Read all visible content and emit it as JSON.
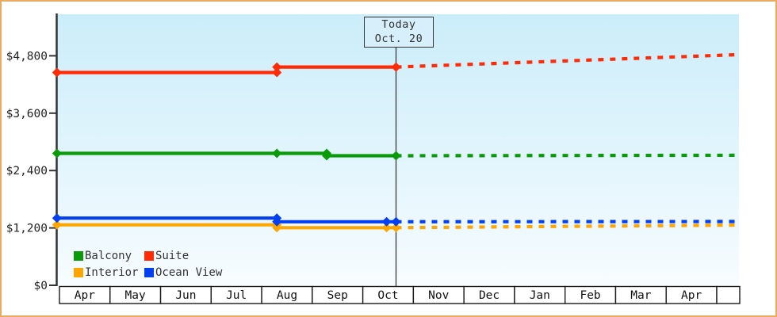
{
  "window": {
    "description": "Cruise cabin price history and forecast chart"
  },
  "colors": {
    "frame_border": "#ecaa62",
    "axis": "#333333",
    "plot_gradient_top": "#cbedfa",
    "plot_gradient_bottom": "#f7fcff",
    "today_box_bg": "#d7effb",
    "month_cell_bg": "#ffffff",
    "text": "#333333"
  },
  "chart_data": {
    "type": "line",
    "title": "",
    "today_label": {
      "line1": "Today",
      "line2": "Oct. 20"
    },
    "today_x_month": 6.657,
    "x_axis": {
      "months": [
        "Apr",
        "May",
        "Jun",
        "Jul",
        "Aug",
        "Sep",
        "Oct",
        "Nov",
        "Dec",
        "Jan",
        "Feb",
        "Mar",
        "Apr"
      ],
      "trailing_partial_cell": true
    },
    "y_axis": {
      "ticks": [
        {
          "label": "$0",
          "value": 0
        },
        {
          "label": "$1,200",
          "value": 1200
        },
        {
          "label": "$2,400",
          "value": 2400
        },
        {
          "label": "$3,600",
          "value": 3600
        },
        {
          "label": "$4,800",
          "value": 4800
        }
      ],
      "ylim": [
        0,
        5670
      ]
    },
    "x_range_months": [
      -0.05,
      13.44
    ],
    "series": [
      {
        "name": "Interior",
        "color": "#ffa502",
        "solid": [
          [
            -0.05,
            1265
          ],
          [
            4.3,
            1265
          ],
          [
            4.3,
            1205
          ],
          [
            6.657,
            1205
          ]
        ],
        "dashed": [
          [
            6.657,
            1205
          ],
          [
            13.44,
            1260
          ]
        ],
        "markers": [
          [
            -0.05,
            1265
          ],
          [
            4.3,
            1265
          ],
          [
            4.3,
            1205
          ],
          [
            6.47,
            1205
          ],
          [
            6.657,
            1205
          ]
        ]
      },
      {
        "name": "Ocean View",
        "color": "#0540f0",
        "solid": [
          [
            -0.05,
            1405
          ],
          [
            4.3,
            1405
          ],
          [
            4.3,
            1330
          ],
          [
            6.657,
            1330
          ]
        ],
        "dashed": [
          [
            6.657,
            1330
          ],
          [
            13.44,
            1335
          ]
        ],
        "markers": [
          [
            -0.05,
            1405
          ],
          [
            4.3,
            1405
          ],
          [
            4.3,
            1330
          ],
          [
            6.47,
            1330
          ],
          [
            6.657,
            1330
          ]
        ]
      },
      {
        "name": "Balcony",
        "color": "#0a9a0a",
        "solid": [
          [
            -0.05,
            2760
          ],
          [
            5.285,
            2760
          ],
          [
            5.285,
            2710
          ],
          [
            6.657,
            2710
          ]
        ],
        "dashed": [
          [
            6.657,
            2710
          ],
          [
            13.44,
            2720
          ]
        ],
        "markers": [
          [
            -0.05,
            2760
          ],
          [
            4.3,
            2760
          ],
          [
            5.285,
            2760
          ],
          [
            5.285,
            2710
          ],
          [
            6.657,
            2710
          ]
        ]
      },
      {
        "name": "Suite",
        "color": "#ff2b06",
        "solid": [
          [
            -0.05,
            4450
          ],
          [
            4.3,
            4450
          ],
          [
            4.3,
            4565
          ],
          [
            6.657,
            4565
          ]
        ],
        "dashed": [
          [
            6.657,
            4565
          ],
          [
            13.44,
            4825
          ]
        ],
        "markers": [
          [
            -0.05,
            4450
          ],
          [
            4.3,
            4450
          ],
          [
            4.3,
            4565
          ],
          [
            6.657,
            4565
          ]
        ]
      }
    ],
    "legend": {
      "items": [
        {
          "label": "Balcony",
          "color": "#0a9a0a"
        },
        {
          "label": "Suite",
          "color": "#ff2b06"
        },
        {
          "label": "Interior",
          "color": "#ffa502"
        },
        {
          "label": "Ocean View",
          "color": "#0540f0"
        }
      ]
    }
  }
}
